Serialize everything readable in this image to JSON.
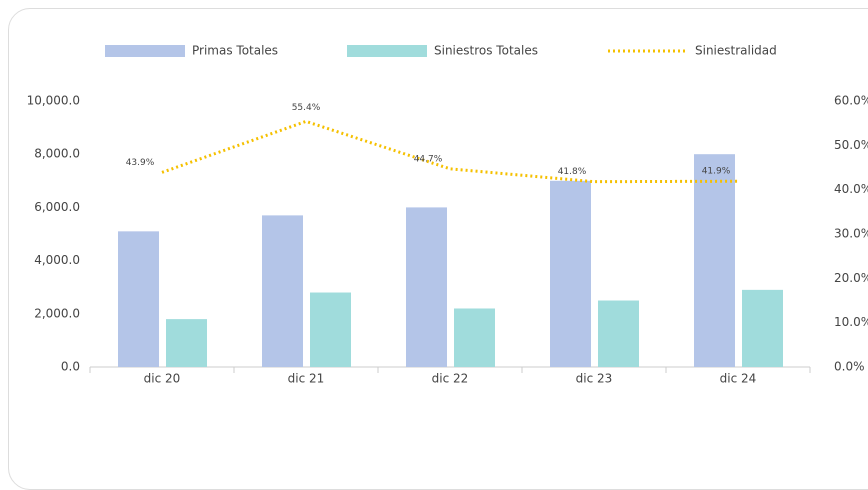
{
  "chart_data": {
    "type": "bar",
    "categories": [
      "dic 20",
      "dic 21",
      "dic 22",
      "dic 23",
      "dic 24"
    ],
    "series": [
      {
        "name": "Primas Totales",
        "color": "#b4c5e8",
        "values": [
          5100,
          5700,
          6000,
          7000,
          8000
        ]
      },
      {
        "name": "Siniestros Totales",
        "color": "#a0dcdc",
        "values": [
          1800,
          2800,
          2200,
          2500,
          2900
        ]
      },
      {
        "name": "Siniestralidad",
        "color": "#f5c000",
        "axis": "y2",
        "type": "line",
        "values": [
          43.9,
          55.4,
          44.7,
          41.8,
          41.9
        ],
        "value_labels": [
          "43.9%",
          "55.4%",
          "44.7%",
          "41.8%",
          "41.9%"
        ]
      }
    ],
    "ylim": [
      0,
      10000
    ],
    "yticks": [
      {
        "value": 0,
        "label": "0.0"
      },
      {
        "value": 2000,
        "label": "2,000.0"
      },
      {
        "value": 4000,
        "label": "4,000.0"
      },
      {
        "value": 6000,
        "label": "6,000.0"
      },
      {
        "value": 8000,
        "label": "8,000.0"
      },
      {
        "value": 10000,
        "label": "10,000.0"
      }
    ],
    "y2lim": [
      0,
      60
    ],
    "y2ticks": [
      {
        "value": 0,
        "label": "0.0%"
      },
      {
        "value": 10,
        "label": "10.0%"
      },
      {
        "value": 20,
        "label": "20.0%"
      },
      {
        "value": 30,
        "label": "30.0%"
      },
      {
        "value": 40,
        "label": "40.0%"
      },
      {
        "value": 50,
        "label": "50.0%"
      },
      {
        "value": 60,
        "label": "60.0%"
      }
    ]
  }
}
